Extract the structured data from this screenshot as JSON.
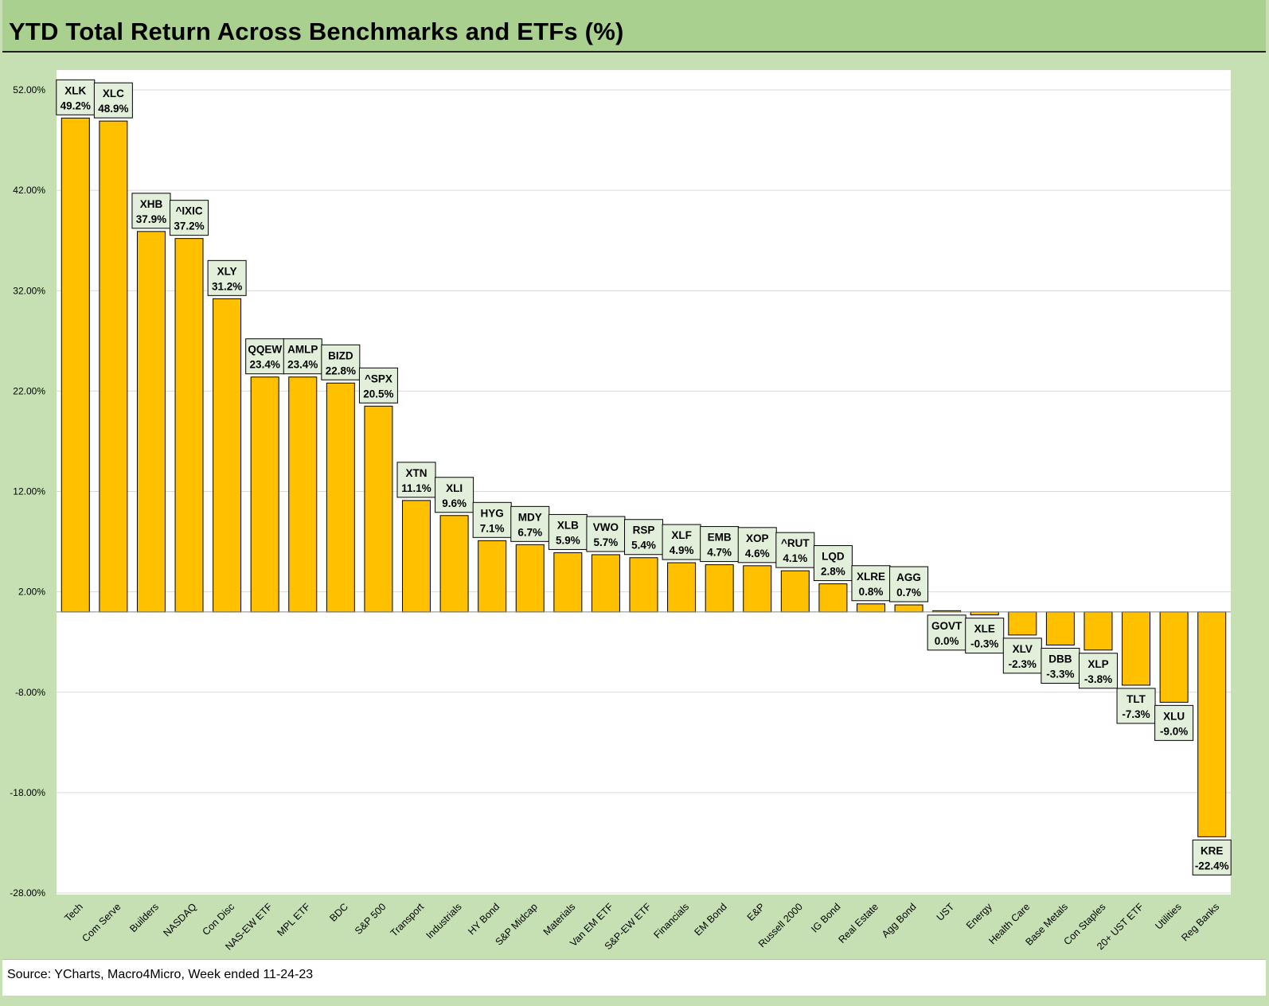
{
  "title": "YTD Total Return Across Benchmarks and ETFs (%)",
  "source": "Source: YCharts, Macro4Micro, Week ended 11-24-23",
  "colors": {
    "bar": "#ffc000",
    "bar_stroke": "#000000",
    "frame": "#c6e0b4",
    "title_bar": "#a9d08e",
    "label_box": "#e2efda",
    "grid": "#d9d9d9"
  },
  "chart_data": {
    "type": "bar",
    "title": "YTD Total Return Across Benchmarks and ETFs (%)",
    "xlabel": "",
    "ylabel": "",
    "ylim": [
      -28,
      52
    ],
    "y_ticks": [
      "52.00%",
      "42.00%",
      "32.00%",
      "22.00%",
      "12.00%",
      "2.00%",
      "-8.00%",
      "-18.00%",
      "-28.00%"
    ],
    "y_tick_values": [
      52,
      42,
      32,
      22,
      12,
      2,
      -8,
      -18,
      -28
    ],
    "grid": true,
    "categories": [
      "Tech",
      "Com Serve",
      "Builders",
      "NASDAQ",
      "Con Disc",
      "NAS-EW ETF",
      "MPL ETF",
      "BDC",
      "S&P 500",
      "Transport",
      "Industrials",
      "HY Bond",
      "S&P Midcap",
      "Materials",
      "Van EM ETF",
      "S&P-EW ETF",
      "Financials",
      "EM Bond",
      "E&P",
      "Russell 2000",
      "IG Bond",
      "Real Estate",
      "Agg Bond",
      "UST",
      "Energy",
      "Health Care",
      "Base Metals",
      "Con Staples",
      "20+ UST ETF",
      "Utilities",
      "Reg Banks"
    ],
    "tickers": [
      "XLK",
      "XLC",
      "XHB",
      "^IXIC",
      "XLY",
      "QQEW",
      "AMLP",
      "BIZD",
      "^SPX",
      "XTN",
      "XLI",
      "HYG",
      "MDY",
      "XLB",
      "VWO",
      "RSP",
      "XLF",
      "EMB",
      "XOP",
      "^RUT",
      "LQD",
      "XLRE",
      "AGG",
      "GOVT",
      "XLE",
      "XLV",
      "DBB",
      "XLP",
      "TLT",
      "XLU",
      "KRE"
    ],
    "values": [
      49.2,
      48.9,
      37.9,
      37.2,
      31.2,
      23.4,
      23.4,
      22.8,
      20.5,
      11.1,
      9.6,
      7.1,
      6.7,
      5.9,
      5.7,
      5.4,
      4.9,
      4.7,
      4.6,
      4.1,
      2.8,
      0.8,
      0.7,
      0.0,
      -0.3,
      -2.3,
      -3.3,
      -3.8,
      -7.3,
      -9.0,
      -22.4
    ],
    "value_labels": [
      "49.2%",
      "48.9%",
      "37.9%",
      "37.2%",
      "31.2%",
      "23.4%",
      "23.4%",
      "22.8%",
      "20.5%",
      "11.1%",
      "9.6%",
      "7.1%",
      "6.7%",
      "5.9%",
      "5.7%",
      "5.4%",
      "4.9%",
      "4.7%",
      "4.6%",
      "4.1%",
      "2.8%",
      "0.8%",
      "0.7%",
      "0.0%",
      "-0.3%",
      "-2.3%",
      "-3.3%",
      "-3.8%",
      "-7.3%",
      "-9.0%",
      "-22.4%"
    ]
  }
}
